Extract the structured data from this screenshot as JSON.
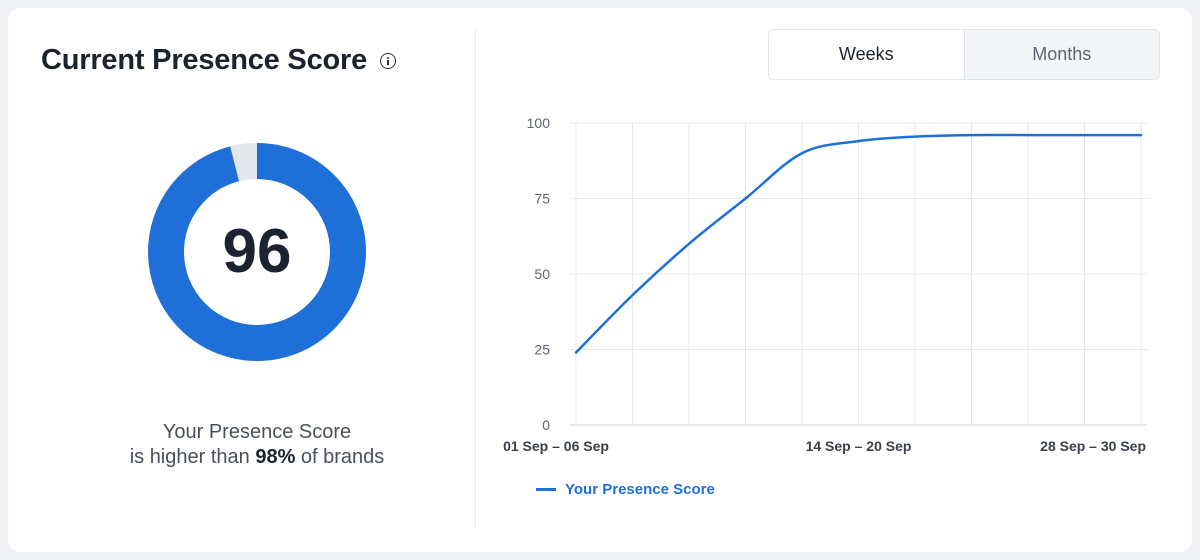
{
  "header": {
    "title": "Current Presence Score"
  },
  "score": {
    "value": "96",
    "percent": 96,
    "caption_line1": "Your Presence Score",
    "caption_prefix": "is higher than ",
    "caption_highlight": "98%",
    "caption_suffix": " of brands"
  },
  "toggle": {
    "options": [
      "Weeks",
      "Months"
    ],
    "selected": "Weeks"
  },
  "colors": {
    "accent": "#1f6fd9",
    "track": "#e3e6ea",
    "grid": "#e6e8eb"
  },
  "chart_data": {
    "type": "line",
    "x_tick_labels": [
      "01 Sep – 06 Sep",
      "14 Sep – 20 Sep",
      "28 Sep – 30 Sep"
    ],
    "ylim": [
      0,
      100
    ],
    "yticks": [
      0,
      25,
      50,
      75,
      100
    ],
    "x_count": 11,
    "grid": true,
    "legend_position": "bottom-left",
    "series": [
      {
        "name": "Your Presence Score",
        "color": "#1f6fd9",
        "values": [
          24,
          43,
          60,
          75,
          90,
          94,
          95.5,
          96,
          96,
          96,
          96
        ]
      }
    ]
  }
}
